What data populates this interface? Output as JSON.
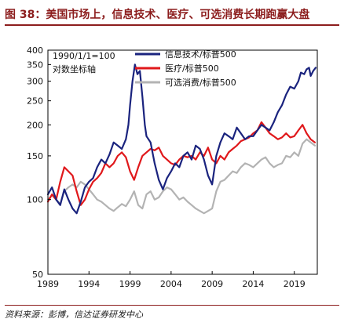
{
  "title": "图 38：美国市场上，信息技术、医疗、可选消费长期跑赢大盘",
  "source": "资料来源：彭博，信达证券研发中心",
  "chart_data": {
    "type": "line",
    "annotation": "1990/1/1=100",
    "ylabel": "对数坐标轴",
    "ylim": [
      50,
      400
    ],
    "yticks": [
      50,
      100,
      150,
      200,
      250,
      300,
      350,
      400
    ],
    "xlim": [
      1989,
      2021.8
    ],
    "xticks": [
      1989,
      1994,
      1999,
      2004,
      2009,
      2014,
      2019
    ],
    "grid": false,
    "legend_position": "top-right",
    "series": [
      {
        "name": "信息技术/标普500",
        "color": "#1a237e",
        "x": [
          1989.0,
          1989.5,
          1990.0,
          1990.5,
          1991.0,
          1991.5,
          1992.0,
          1992.5,
          1993.0,
          1993.5,
          1994.0,
          1994.5,
          1995.0,
          1995.5,
          1996.0,
          1996.5,
          1997.0,
          1997.5,
          1998.0,
          1998.5,
          1998.8,
          1999.0,
          1999.3,
          1999.6,
          1999.9,
          2000.2,
          2000.5,
          2000.8,
          2001.0,
          2001.5,
          2002.0,
          2002.5,
          2003.0,
          2003.5,
          2004.0,
          2004.5,
          2005.0,
          2005.5,
          2006.0,
          2006.5,
          2007.0,
          2007.5,
          2008.0,
          2008.5,
          2009.0,
          2009.5,
          2010.0,
          2010.5,
          2011.0,
          2011.5,
          2012.0,
          2012.5,
          2013.0,
          2013.5,
          2014.0,
          2014.5,
          2015.0,
          2015.5,
          2016.0,
          2016.5,
          2017.0,
          2017.5,
          2018.0,
          2018.5,
          2019.0,
          2019.5,
          2019.8,
          2020.2,
          2020.5,
          2020.8,
          2021.0,
          2021.3,
          2021.6
        ],
        "values": [
          105,
          112,
          100,
          95,
          110,
          100,
          92,
          88,
          98,
          112,
          118,
          122,
          135,
          145,
          140,
          152,
          170,
          165,
          160,
          175,
          200,
          240,
          300,
          350,
          320,
          330,
          260,
          200,
          180,
          170,
          140,
          120,
          110,
          122,
          130,
          140,
          135,
          150,
          155,
          145,
          165,
          160,
          145,
          125,
          115,
          150,
          170,
          185,
          180,
          175,
          195,
          185,
          175,
          180,
          180,
          190,
          200,
          195,
          190,
          205,
          225,
          240,
          265,
          285,
          280,
          300,
          325,
          320,
          335,
          340,
          315,
          330,
          340
        ]
      },
      {
        "name": "医疗/标普500",
        "color": "#e0181b",
        "x": [
          1989.0,
          1989.5,
          1990.0,
          1990.5,
          1991.0,
          1991.5,
          1992.0,
          1992.5,
          1993.0,
          1993.5,
          1994.0,
          1994.5,
          1995.0,
          1995.5,
          1996.0,
          1996.5,
          1997.0,
          1997.5,
          1998.0,
          1998.5,
          1999.0,
          1999.5,
          2000.0,
          2000.5,
          2001.0,
          2001.5,
          2002.0,
          2002.5,
          2003.0,
          2003.5,
          2004.0,
          2004.5,
          2005.0,
          2005.5,
          2006.0,
          2006.5,
          2007.0,
          2007.5,
          2008.0,
          2008.5,
          2009.0,
          2009.5,
          2010.0,
          2010.5,
          2011.0,
          2011.5,
          2012.0,
          2012.5,
          2013.0,
          2013.5,
          2014.0,
          2014.5,
          2015.0,
          2015.5,
          2016.0,
          2016.5,
          2017.0,
          2017.5,
          2018.0,
          2018.5,
          2019.0,
          2019.5,
          2020.0,
          2020.5,
          2021.0,
          2021.5
        ],
        "values": [
          98,
          105,
          100,
          118,
          135,
          130,
          125,
          108,
          95,
          100,
          110,
          118,
          122,
          128,
          140,
          135,
          140,
          150,
          155,
          148,
          130,
          120,
          135,
          150,
          155,
          160,
          158,
          162,
          150,
          145,
          140,
          138,
          145,
          150,
          148,
          150,
          145,
          155,
          150,
          162,
          145,
          140,
          150,
          145,
          155,
          160,
          165,
          172,
          175,
          178,
          185,
          190,
          205,
          195,
          185,
          180,
          175,
          178,
          185,
          178,
          180,
          190,
          200,
          185,
          175,
          170
        ]
      },
      {
        "name": "可选消费/标普500",
        "color": "#b3b3b3",
        "x": [
          1989.0,
          1989.5,
          1990.0,
          1990.5,
          1991.0,
          1991.5,
          1992.0,
          1992.5,
          1993.0,
          1993.5,
          1994.0,
          1994.5,
          1995.0,
          1995.5,
          1996.0,
          1996.5,
          1997.0,
          1997.5,
          1998.0,
          1998.5,
          1999.0,
          1999.5,
          2000.0,
          2000.5,
          2001.0,
          2001.5,
          2002.0,
          2002.5,
          2003.0,
          2003.5,
          2004.0,
          2004.5,
          2005.0,
          2005.5,
          2006.0,
          2006.5,
          2007.0,
          2007.5,
          2008.0,
          2008.5,
          2009.0,
          2009.5,
          2010.0,
          2010.5,
          2011.0,
          2011.5,
          2012.0,
          2012.5,
          2013.0,
          2013.5,
          2014.0,
          2014.5,
          2015.0,
          2015.5,
          2016.0,
          2016.5,
          2017.0,
          2017.5,
          2018.0,
          2018.5,
          2019.0,
          2019.5,
          2020.0,
          2020.5,
          2021.0,
          2021.5
        ],
        "values": [
          100,
          104,
          100,
          96,
          108,
          112,
          115,
          112,
          118,
          115,
          110,
          105,
          100,
          98,
          95,
          92,
          90,
          93,
          96,
          94,
          100,
          108,
          95,
          92,
          105,
          108,
          100,
          102,
          108,
          112,
          110,
          105,
          100,
          102,
          98,
          95,
          92,
          90,
          88,
          90,
          92,
          108,
          118,
          120,
          125,
          130,
          128,
          135,
          140,
          138,
          135,
          140,
          145,
          148,
          140,
          135,
          138,
          140,
          150,
          148,
          155,
          150,
          168,
          175,
          170,
          165
        ]
      }
    ]
  }
}
